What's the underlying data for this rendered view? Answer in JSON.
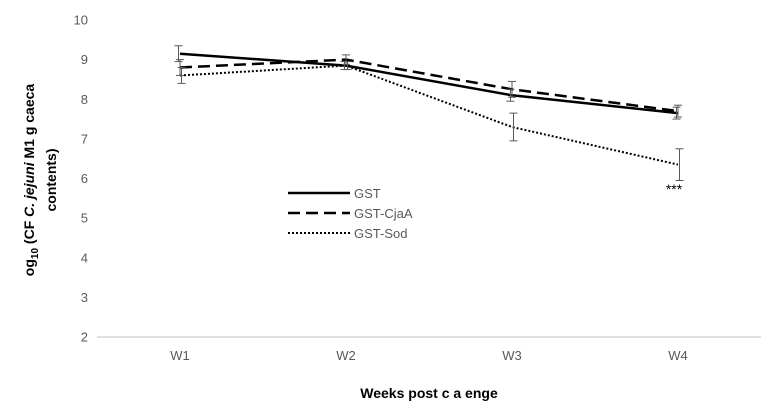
{
  "chart_data": {
    "type": "line",
    "categories": [
      "W1",
      "W2",
      "W3",
      "W4"
    ],
    "ylim": [
      2,
      10
    ],
    "yticks": [
      "2",
      "3",
      "4",
      "5",
      "6",
      "7",
      "8",
      "9",
      "10"
    ],
    "xlabel": "Weeks post c a   enge",
    "ylabel_parts": {
      "prefix": "og",
      "subscript": "10",
      "middle": " (CF    ",
      "species": "C. jejuni",
      "suffix": " M1 g caeca",
      "line2": "contents)"
    },
    "legend_position": "center-left",
    "grid": false,
    "series": [
      {
        "name": "GST",
        "style": "solid",
        "color": "#000000",
        "values": [
          9.15,
          8.85,
          8.1,
          7.65
        ],
        "errors": [
          0.2,
          0.1,
          0.15,
          0.15
        ]
      },
      {
        "name": "GST-CjaA",
        "style": "dashed",
        "color": "#000000",
        "values": [
          8.8,
          9.0,
          8.25,
          7.7
        ],
        "errors": [
          0.2,
          0.12,
          0.2,
          0.15
        ]
      },
      {
        "name": "GST-Sod",
        "style": "dotted",
        "color": "#000000",
        "values": [
          8.6,
          8.85,
          7.3,
          6.35
        ],
        "errors": [
          0.2,
          0.1,
          0.35,
          0.4
        ]
      }
    ],
    "annotations": [
      {
        "category": "W4",
        "text": "***"
      }
    ]
  }
}
